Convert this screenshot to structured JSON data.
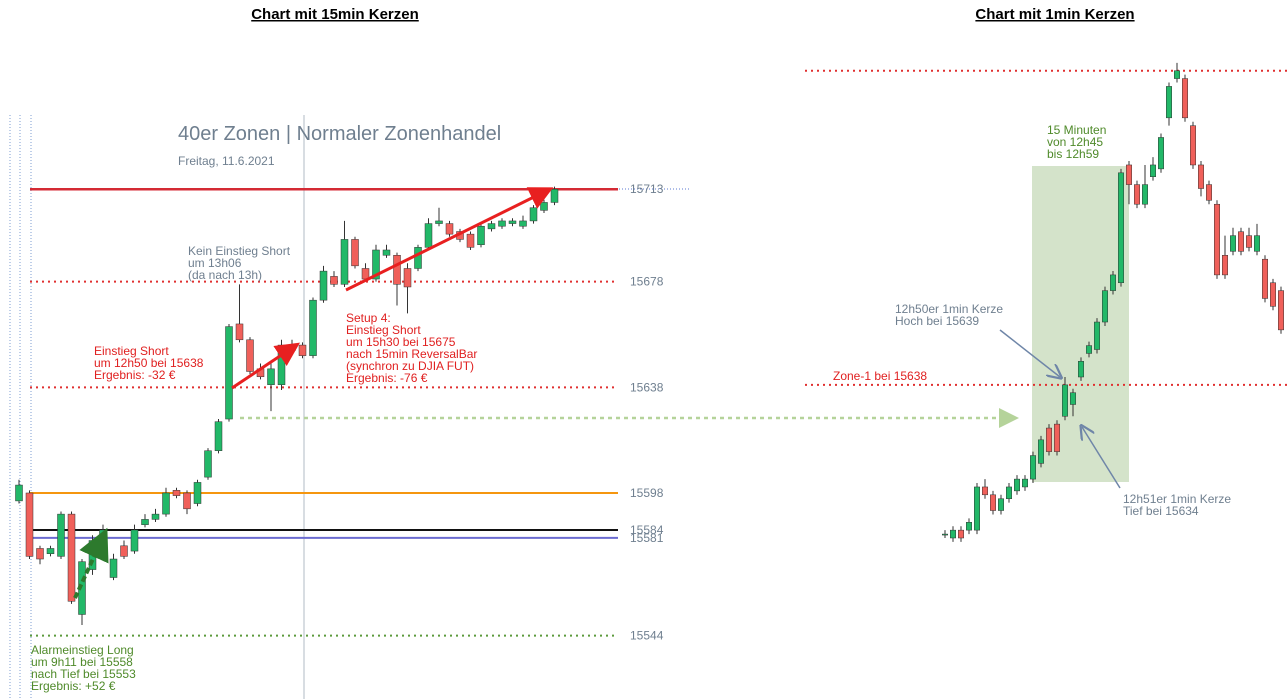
{
  "chart_data": [
    {
      "type": "candlestick",
      "title": "Chart mit 15min Kerzen",
      "subtitle": "40er Zonen | Normaler Zonenhandel",
      "date": "Freitag, 11.6.2021",
      "up_color": "#22b868",
      "down_color": "#f0605a",
      "ylim": [
        15520,
        15743
      ],
      "open": [
        15595,
        15598,
        15577,
        15575,
        15574,
        15590,
        15552,
        15569,
        15578,
        15566,
        15578,
        15576,
        15586,
        15588,
        15590,
        15599,
        15598,
        15594,
        15604,
        15614,
        15626,
        15662,
        15656,
        15645,
        15639,
        15639,
        15652,
        15654,
        15650,
        15671,
        15680,
        15677,
        15694,
        15683,
        15679,
        15688,
        15688,
        15683,
        15683,
        15691,
        15700,
        15700,
        15697,
        15696,
        15692,
        15698,
        15699,
        15700,
        15699,
        15701,
        15705,
        15708
      ],
      "high": [
        15603,
        15599,
        15578,
        15578,
        15591,
        15591,
        15573,
        15582,
        15586,
        15575,
        15580,
        15586,
        15590,
        15592,
        15600,
        15600,
        15599,
        15603,
        15615,
        15626,
        15662,
        15677,
        15657,
        15647,
        15647,
        15656,
        15656,
        15655,
        15672,
        15684,
        15682,
        15701,
        15695,
        15685,
        15692,
        15692,
        15689,
        15685,
        15692,
        15702,
        15706,
        15701,
        15698,
        15697,
        15700,
        15701,
        15702,
        15702,
        15703,
        15707,
        15709,
        15714
      ],
      "low": [
        15594,
        15573,
        15571,
        15574,
        15573,
        15556,
        15548,
        15567,
        15577,
        15565,
        15573,
        15575,
        15585,
        15587,
        15589,
        15596,
        15590,
        15593,
        15603,
        15613,
        15625,
        15655,
        15643,
        15641,
        15629,
        15637,
        15651,
        15649,
        15649,
        15670,
        15676,
        15676,
        15683,
        15678,
        15678,
        15687,
        15669,
        15666,
        15682,
        15690,
        15699,
        15695,
        15693,
        15690,
        15691,
        15697,
        15698,
        15699,
        15698,
        15700,
        15704,
        15707
      ],
      "close": [
        15601,
        15574,
        15573,
        15577,
        15590,
        15557,
        15572,
        15580,
        15584,
        15573,
        15574,
        15584,
        15588,
        15590,
        15598,
        15597,
        15592,
        15602,
        15614,
        15625,
        15661,
        15656,
        15644,
        15642,
        15645,
        15654,
        15654,
        15650,
        15671,
        15682,
        15677,
        15694,
        15684,
        15679,
        15690,
        15690,
        15677,
        15676,
        15691,
        15700,
        15701,
        15696,
        15694,
        15691,
        15699,
        15700,
        15701,
        15701,
        15701,
        15706,
        15708,
        15713
      ],
      "levels": [
        {
          "value": 15713,
          "color": "#d42a34",
          "style": "solid"
        },
        {
          "value": 15678,
          "color": "#e03030",
          "style": "dotted"
        },
        {
          "value": 15638,
          "color": "#e03030",
          "style": "dotted"
        },
        {
          "value": 15598,
          "color": "#f5960f",
          "style": "solid"
        },
        {
          "value": 15584,
          "color": "#111111",
          "style": "solid"
        },
        {
          "value": 15581,
          "color": "#6b6bd0",
          "style": "solid"
        },
        {
          "value": 15544,
          "color": "#5c9a3c",
          "style": "dotted"
        }
      ],
      "annotations": [
        {
          "lines": [
            "Kein Einstieg Short",
            "um 13h06",
            "(da nach 13h)"
          ],
          "color": "#6f7f8f"
        },
        {
          "lines": [
            "Einstieg Short",
            "um 12h50 bei 15638",
            "Ergebnis: -32 €"
          ],
          "color": "#e02020"
        },
        {
          "lines": [
            "Setup 4:",
            "Einstieg Short",
            "um 15h30 bei 15675",
            "nach 15min ReversalBar",
            "(synchron zu DJIA FUT)",
            "Ergebnis: -76 €"
          ],
          "color": "#e02020"
        },
        {
          "lines": [
            "Alarmeinstieg Long",
            "um 9h11 bei 15558",
            "nach Tief bei 15553",
            "Ergebnis: +52 €"
          ],
          "color": "#4f8a2a"
        }
      ]
    },
    {
      "type": "candlestick",
      "title": "Chart mit 1min Kerzen",
      "up_color": "#22b868",
      "down_color": "#f0605a",
      "ylim": [
        15598,
        15680
      ],
      "open": [
        15619,
        15618.5,
        15619.5,
        15619.5,
        15619.5,
        15625,
        15624,
        15622,
        15623.5,
        15624.5,
        15625,
        15626,
        15628,
        15632.5,
        15633,
        15634,
        15635.5,
        15639,
        15642,
        15642.5,
        15646,
        15650,
        15651,
        15666,
        15663.5,
        15661,
        15664.5,
        15665.5,
        15672,
        15677,
        15677,
        15671,
        15666,
        15663.5,
        15661,
        15654.5,
        15655,
        15657.5,
        15657,
        15655,
        15654,
        15651,
        15650
      ],
      "high": [
        15619.5,
        15620,
        15620,
        15621,
        15625.5,
        15626,
        15624.5,
        15624,
        15625.5,
        15626.5,
        15626.5,
        15629.5,
        15631.5,
        15633,
        15633.5,
        15639,
        15637.5,
        15641.5,
        15643.5,
        15646.5,
        15650.5,
        15652.5,
        15665.5,
        15666.5,
        15664,
        15666,
        15667,
        15670,
        15676.5,
        15679,
        15677.5,
        15671.5,
        15666.5,
        15664,
        15661.5,
        15657,
        15658,
        15658,
        15658,
        15658.5,
        15654.5,
        15651.5,
        15650.5
      ],
      "low": [
        15618.5,
        15618,
        15618,
        15619,
        15619,
        15623.5,
        15621.5,
        15621.5,
        15623,
        15624,
        15624.5,
        15625.5,
        15627.5,
        15629,
        15629,
        15633.5,
        15634,
        15638.5,
        15641.5,
        15642,
        15645.5,
        15649.5,
        15650.5,
        15661,
        15660.5,
        15660.5,
        15664,
        15665,
        15671,
        15676.5,
        15671.5,
        15665.5,
        15662,
        15661,
        15651.5,
        15651.5,
        15654.5,
        15654.5,
        15655,
        15654.5,
        15648.5,
        15647.5,
        15644.5
      ],
      "close": [
        15619,
        15619.5,
        15618.5,
        15620.5,
        15625,
        15624,
        15622,
        15623.5,
        15625,
        15626,
        15626,
        15629,
        15631,
        15629.5,
        15629.5,
        15638,
        15637,
        15641,
        15643,
        15646,
        15650,
        15652,
        15665,
        15663.5,
        15661,
        15663.5,
        15666,
        15669.5,
        15676,
        15678,
        15672,
        15666,
        15663,
        15661.5,
        15652,
        15652,
        15657,
        15655,
        15655.5,
        15657,
        15649,
        15648,
        15645
      ],
      "levels": [
        {
          "value": 15678,
          "color": "#e03030",
          "style": "dotted"
        },
        {
          "value": 15638,
          "color": "#e03030",
          "style": "dotted"
        }
      ],
      "annotations": [
        {
          "lines": [
            "15 Minuten",
            "von 12h45",
            "bis 12h59"
          ],
          "color": "#4f8a2a"
        },
        {
          "lines": [
            "12h50er 1min Kerze",
            "Hoch bei 15639"
          ],
          "color": "#6f7f8f"
        },
        {
          "lines": [
            "Zone-1 bei 15638"
          ],
          "color": "#e02020"
        },
        {
          "lines": [
            "12h51er 1min Kerze",
            "Tief bei 15634"
          ],
          "color": "#6f7f8f"
        }
      ]
    }
  ]
}
